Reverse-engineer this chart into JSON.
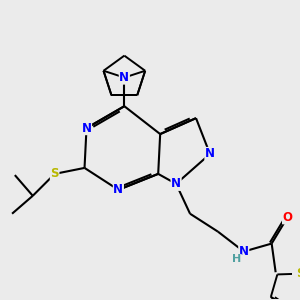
{
  "bg_color": "#ebebeb",
  "atom_colors": {
    "N": "#0000ff",
    "S": "#b8b800",
    "O": "#ff0000",
    "C": "#000000",
    "H": "#50a0a0"
  },
  "bond_color": "#000000",
  "font_size_atoms": 8.5,
  "fig_width": 3.0,
  "fig_height": 3.0,
  "dpi": 100
}
